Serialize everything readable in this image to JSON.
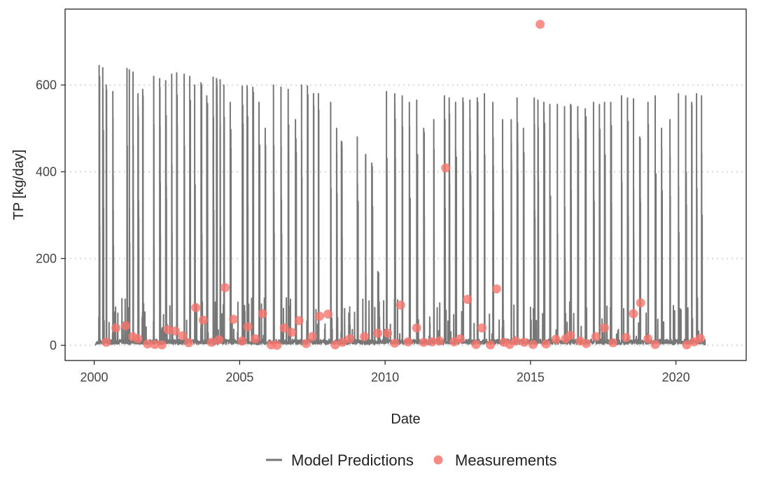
{
  "chart_data": {
    "type": "line",
    "title": "",
    "xlabel": "Date",
    "ylabel": "TP [kg/day]",
    "xlim": [
      "1999-01-01",
      "2022-06-01"
    ],
    "ylim": [
      -35,
      775
    ],
    "x_ticks": [
      "2000",
      "2005",
      "2010",
      "2015",
      "2020"
    ],
    "y_ticks": [
      0,
      200,
      400,
      600
    ],
    "grid": "horizontal-dotted",
    "legend_position": "bottom",
    "series": [
      {
        "name": "Model Predictions",
        "kind": "line",
        "color": "#777777",
        "spike_dates": [
          "2000-03-01",
          "2000-04-15",
          "2000-06-01",
          "2000-08-20",
          "2001-02-15",
          "2001-03-15",
          "2001-05-01",
          "2001-07-01",
          "2001-09-01",
          "2002-01-15",
          "2002-04-01",
          "2002-06-15",
          "2002-09-01",
          "2002-11-01",
          "2003-02-01",
          "2003-04-15",
          "2003-06-15",
          "2003-09-01",
          "2003-11-15",
          "2004-02-01",
          "2004-03-15",
          "2004-05-01",
          "2004-06-15",
          "2004-09-01",
          "2005-02-01",
          "2005-04-01",
          "2005-06-15",
          "2005-09-01",
          "2005-11-15",
          "2006-03-01",
          "2006-06-01",
          "2006-09-01",
          "2006-12-01",
          "2007-02-15",
          "2007-05-01",
          "2007-07-15",
          "2007-09-15",
          "2008-02-15",
          "2008-05-01",
          "2008-07-01",
          "2009-01-15",
          "2009-05-01",
          "2009-07-15",
          "2009-10-01",
          "2010-01-15",
          "2010-05-01",
          "2010-08-01",
          "2010-11-01",
          "2011-02-01",
          "2011-05-01",
          "2011-09-01",
          "2012-01-15",
          "2012-03-15",
          "2012-06-01",
          "2012-09-01",
          "2012-12-01",
          "2013-03-01",
          "2013-06-01",
          "2013-09-15",
          "2014-01-15",
          "2014-05-01",
          "2014-07-15",
          "2014-10-01",
          "2015-02-15",
          "2015-04-01",
          "2015-06-15",
          "2015-09-01",
          "2015-12-01",
          "2016-03-01",
          "2016-05-15",
          "2016-08-15",
          "2016-11-15",
          "2017-03-01",
          "2017-05-15",
          "2017-07-15",
          "2017-10-01",
          "2018-02-15",
          "2018-05-01",
          "2018-07-15",
          "2018-10-01",
          "2019-01-15",
          "2019-04-15",
          "2019-07-01",
          "2019-10-15",
          "2020-02-01",
          "2020-05-01",
          "2020-07-15",
          "2020-09-15",
          "2020-11-15"
        ],
        "spike_values": [
          645,
          640,
          600,
          585,
          638,
          635,
          630,
          580,
          590,
          620,
          615,
          610,
          625,
          628,
          625,
          620,
          600,
          605,
          575,
          618,
          615,
          612,
          600,
          560,
          597,
          598,
          595,
          560,
          500,
          600,
          595,
          590,
          520,
          600,
          598,
          580,
          580,
          560,
          500,
          470,
          480,
          440,
          420,
          170,
          585,
          580,
          575,
          560,
          565,
          500,
          520,
          575,
          570,
          560,
          570,
          565,
          570,
          580,
          560,
          520,
          520,
          570,
          500,
          570,
          565,
          560,
          555,
          555,
          550,
          555,
          550,
          545,
          560,
          555,
          560,
          560,
          575,
          570,
          568,
          480,
          560,
          575,
          500,
          520,
          580,
          575,
          560,
          580,
          575
        ]
      },
      {
        "name": "Measurements",
        "kind": "points",
        "color": "#F8766D",
        "dates": [
          "2000-06-01",
          "2000-10-01",
          "2001-02-01",
          "2001-05-01",
          "2001-07-01",
          "2001-11-01",
          "2002-02-01",
          "2002-05-01",
          "2002-07-15",
          "2002-10-15",
          "2003-01-15",
          "2003-04-01",
          "2003-07-01",
          "2003-10-01",
          "2004-01-15",
          "2004-04-15",
          "2004-07-01",
          "2004-10-15",
          "2005-02-01",
          "2005-04-15",
          "2005-07-15",
          "2005-10-15",
          "2006-02-01",
          "2006-04-15",
          "2006-07-15",
          "2006-10-15",
          "2007-01-15",
          "2007-04-15",
          "2007-07-01",
          "2007-10-01",
          "2008-01-15",
          "2008-04-15",
          "2008-07-15",
          "2008-10-15",
          "2009-04-15",
          "2009-10-01",
          "2010-02-01",
          "2010-05-01",
          "2010-07-15",
          "2010-10-15",
          "2011-02-01",
          "2011-05-01",
          "2011-08-15",
          "2011-11-15",
          "2012-02-01",
          "2012-05-15",
          "2012-08-01",
          "2012-11-01",
          "2013-02-15",
          "2013-05-01",
          "2013-08-15",
          "2013-11-01",
          "2014-02-01",
          "2014-04-15",
          "2014-07-01",
          "2014-10-15",
          "2015-02-01",
          "2015-05-01",
          "2015-07-15",
          "2015-11-15",
          "2016-03-15",
          "2016-05-15",
          "2016-09-15",
          "2016-12-01",
          "2017-04-01",
          "2017-07-15",
          "2017-11-01",
          "2018-04-15",
          "2018-07-15",
          "2018-10-15",
          "2019-01-15",
          "2019-04-15",
          "2020-05-15",
          "2020-08-15",
          "2020-11-01"
        ],
        "values": [
          7,
          40,
          45,
          20,
          15,
          3,
          2,
          1,
          36,
          33,
          22,
          6,
          87,
          58,
          7,
          13,
          133,
          60,
          10,
          43,
          15,
          73,
          1,
          0,
          40,
          30,
          57,
          4,
          20,
          67,
          72,
          1,
          7,
          15,
          20,
          28,
          28,
          5,
          93,
          8,
          40,
          7,
          8,
          10,
          409,
          8,
          15,
          106,
          2,
          40,
          1,
          130,
          7,
          2,
          10,
          7,
          2,
          740,
          3,
          14,
          15,
          23,
          10,
          4,
          20,
          40,
          6,
          18,
          73,
          98,
          15,
          2,
          1,
          8,
          16
        ]
      }
    ]
  },
  "legend": {
    "items": [
      {
        "label": "Model Predictions",
        "color": "#777777"
      },
      {
        "label": "Measurements",
        "color": "#F8766D"
      }
    ]
  }
}
